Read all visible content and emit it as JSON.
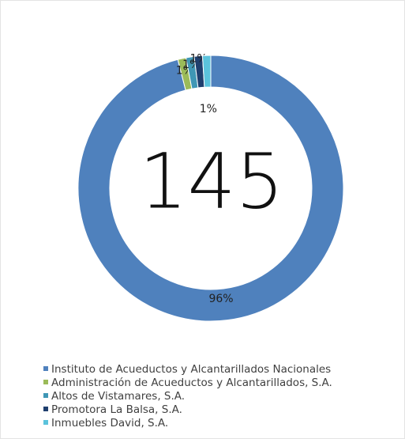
{
  "chart_data": {
    "type": "donut",
    "center_label": "145",
    "categories": [
      "Instituto de Acueductos y Alcantarillados Nacionales",
      "Administración de Acueductos y Alcantarillados, S.A.",
      "Altos de Vistamares, S.A.",
      "Promotora La Balsa, S.A.",
      "Inmuebles David, S.A."
    ],
    "values": [
      96,
      1,
      1,
      1,
      1
    ],
    "value_labels": [
      "96%",
      "1%",
      "1%",
      "1%",
      "1%"
    ],
    "colors": [
      "#4f81bd",
      "#9bbb59",
      "#3f97b5",
      "#1f3f6e",
      "#5bc3dc"
    ]
  }
}
